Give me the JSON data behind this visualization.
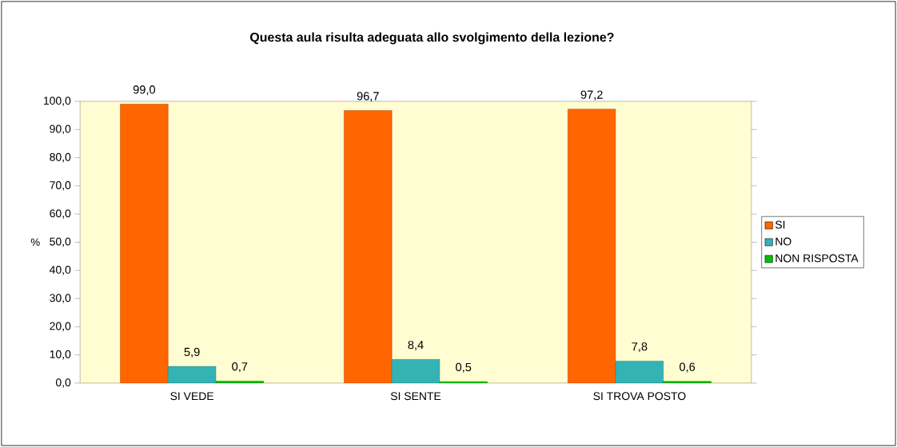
{
  "chart_data": {
    "type": "bar",
    "title": "Questa aula risulta adeguata allo svolgimento della lezione?",
    "ylabel": "%",
    "categories": [
      "SI VEDE",
      "SI SENTE",
      "SI TROVA POSTO"
    ],
    "series": [
      {
        "name": "SI",
        "color": "#ff6600",
        "values": [
          99.0,
          96.7,
          97.2
        ],
        "value_labels": [
          "99,0",
          "96,7",
          "97,2"
        ]
      },
      {
        "name": "NO",
        "color": "#33b3b3",
        "values": [
          5.9,
          8.4,
          7.8
        ],
        "value_labels": [
          "5,9",
          "8,4",
          "7,8"
        ]
      },
      {
        "name": "NON RISPOSTA",
        "color": "#00c000",
        "values": [
          0.7,
          0.5,
          0.6
        ],
        "value_labels": [
          "0,7",
          "0,5",
          "0,6"
        ]
      }
    ],
    "ylim": [
      0,
      100
    ],
    "yticks": [
      {
        "value": 0,
        "label": "0,0"
      },
      {
        "value": 10,
        "label": "10,0"
      },
      {
        "value": 20,
        "label": "20,0"
      },
      {
        "value": 30,
        "label": "30,0"
      },
      {
        "value": 40,
        "label": "40,0"
      },
      {
        "value": 50,
        "label": "50,0"
      },
      {
        "value": 60,
        "label": "60,0"
      },
      {
        "value": 70,
        "label": "70,0"
      },
      {
        "value": 80,
        "label": "80,0"
      },
      {
        "value": 90,
        "label": "90,0"
      },
      {
        "value": 100,
        "label": "100,0"
      }
    ],
    "legend": "right",
    "grid": false
  }
}
